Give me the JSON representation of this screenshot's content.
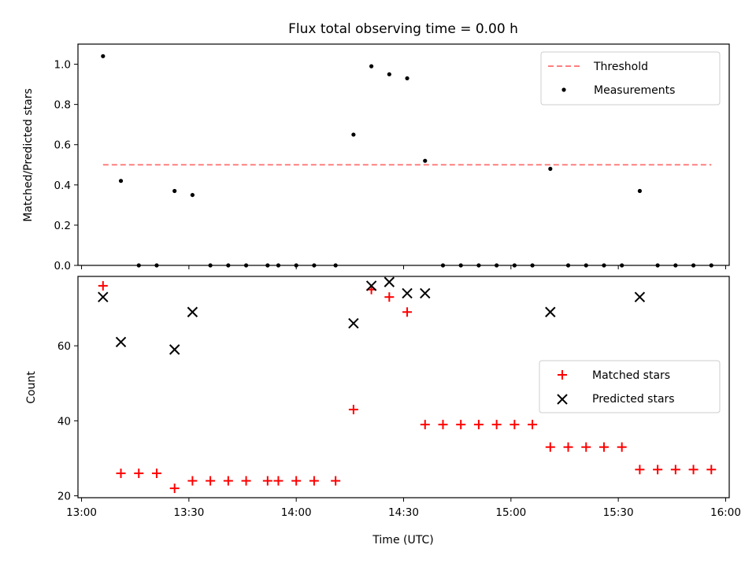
{
  "chart_data": [
    {
      "type": "scatter",
      "title": "Flux total observing time = 0.00 h",
      "xlabel": "",
      "ylabel": "Matched/Predicted stars",
      "xlim": [
        "12:59",
        "16:01"
      ],
      "ylim": [
        0,
        1.1
      ],
      "yticks": [
        "0.0",
        "0.2",
        "0.4",
        "0.6",
        "0.8",
        "1.0"
      ],
      "ytick_values": [
        0,
        0.2,
        0.4,
        0.6,
        0.8,
        1.0
      ],
      "legend_position": "top-right",
      "threshold": {
        "name": "Threshold",
        "value": 0.5,
        "x_start": "13:06",
        "x_end": "15:56",
        "color": "#ff7f7f",
        "style": "dashed"
      },
      "series": [
        {
          "name": "Measurements",
          "color": "#000000",
          "marker": "dot",
          "x": [
            "13:06",
            "13:11",
            "13:16",
            "13:21",
            "13:26",
            "13:31",
            "13:36",
            "13:41",
            "13:46",
            "13:52",
            "13:55",
            "14:00",
            "14:05",
            "14:11",
            "14:16",
            "14:21",
            "14:26",
            "14:31",
            "14:36",
            "14:41",
            "14:46",
            "14:51",
            "14:56",
            "15:01",
            "15:06",
            "15:11",
            "15:16",
            "15:21",
            "15:26",
            "15:31",
            "15:36",
            "15:41",
            "15:46",
            "15:51",
            "15:56"
          ],
          "y": [
            1.04,
            0.42,
            0,
            0,
            0.37,
            0.35,
            0,
            0,
            0,
            0,
            0,
            0,
            0,
            0,
            0.65,
            0.99,
            0.95,
            0.93,
            0.52,
            0,
            0,
            0,
            0,
            0,
            0,
            0.48,
            0,
            0,
            0,
            0,
            0.37,
            0,
            0,
            0,
            0
          ]
        }
      ]
    },
    {
      "type": "scatter",
      "title": "",
      "xlabel": "Time (UTC)",
      "ylabel": "Count",
      "xlim": [
        "12:59",
        "16:01"
      ],
      "ylim": [
        19.5,
        78.5
      ],
      "xticks": [
        "13:00",
        "13:30",
        "14:00",
        "14:30",
        "15:00",
        "15:30",
        "16:00"
      ],
      "yticks": [
        "20",
        "40",
        "60"
      ],
      "ytick_values": [
        20,
        40,
        60
      ],
      "legend_position": "center-right",
      "series": [
        {
          "name": "Matched stars",
          "color": "#ff0000",
          "marker": "plus",
          "x": [
            "13:06",
            "13:11",
            "13:16",
            "13:21",
            "13:26",
            "13:31",
            "13:36",
            "13:41",
            "13:46",
            "13:52",
            "13:55",
            "14:00",
            "14:05",
            "14:11",
            "14:16",
            "14:21",
            "14:26",
            "14:31",
            "14:36",
            "14:41",
            "14:46",
            "14:51",
            "14:56",
            "15:01",
            "15:06",
            "15:11",
            "15:16",
            "15:21",
            "15:26",
            "15:31",
            "15:36",
            "15:41",
            "15:46",
            "15:51",
            "15:56"
          ],
          "y": [
            76,
            26,
            26,
            26,
            22,
            24,
            24,
            24,
            24,
            24,
            24,
            24,
            24,
            24,
            43,
            75,
            73,
            69,
            39,
            39,
            39,
            39,
            39,
            39,
            39,
            33,
            33,
            33,
            33,
            33,
            27,
            27,
            27,
            27,
            27
          ]
        },
        {
          "name": "Predicted stars",
          "color": "#000000",
          "marker": "x",
          "x": [
            "13:06",
            "13:11",
            "13:26",
            "13:31",
            "14:16",
            "14:21",
            "14:26",
            "14:31",
            "14:36",
            "15:11",
            "15:36"
          ],
          "y": [
            73,
            61,
            59,
            69,
            66,
            76,
            77,
            74,
            74,
            69,
            73
          ]
        }
      ]
    }
  ]
}
